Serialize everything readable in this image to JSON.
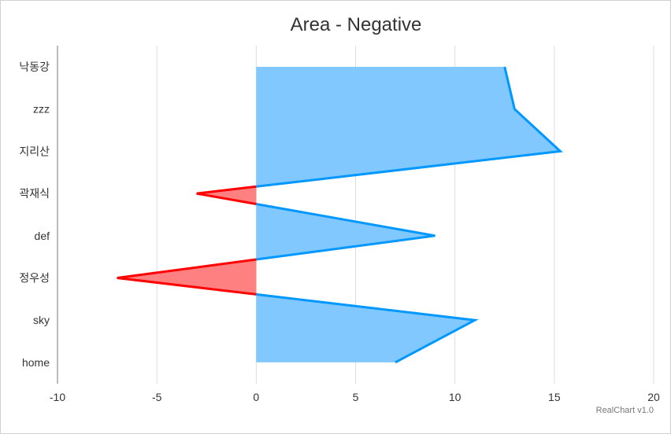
{
  "chart_data": {
    "type": "area",
    "orientation": "horizontal",
    "title": "Area - Negative",
    "categories": [
      "낙동강",
      "zzz",
      "지리산",
      "곽재식",
      "def",
      "정우성",
      "sky",
      "home"
    ],
    "values": [
      12.5,
      13,
      15.3,
      -3,
      9,
      -7,
      11,
      7
    ],
    "xlim": [
      -10,
      20
    ],
    "xticks": [
      -10,
      -5,
      0,
      5,
      10,
      15,
      20
    ],
    "positive_color": "#0098ff",
    "positive_fill": "#80c8ff",
    "negative_color": "#ff0000",
    "negative_fill": "#ff8080",
    "grid": true
  },
  "credit": "RealChart v1.0"
}
